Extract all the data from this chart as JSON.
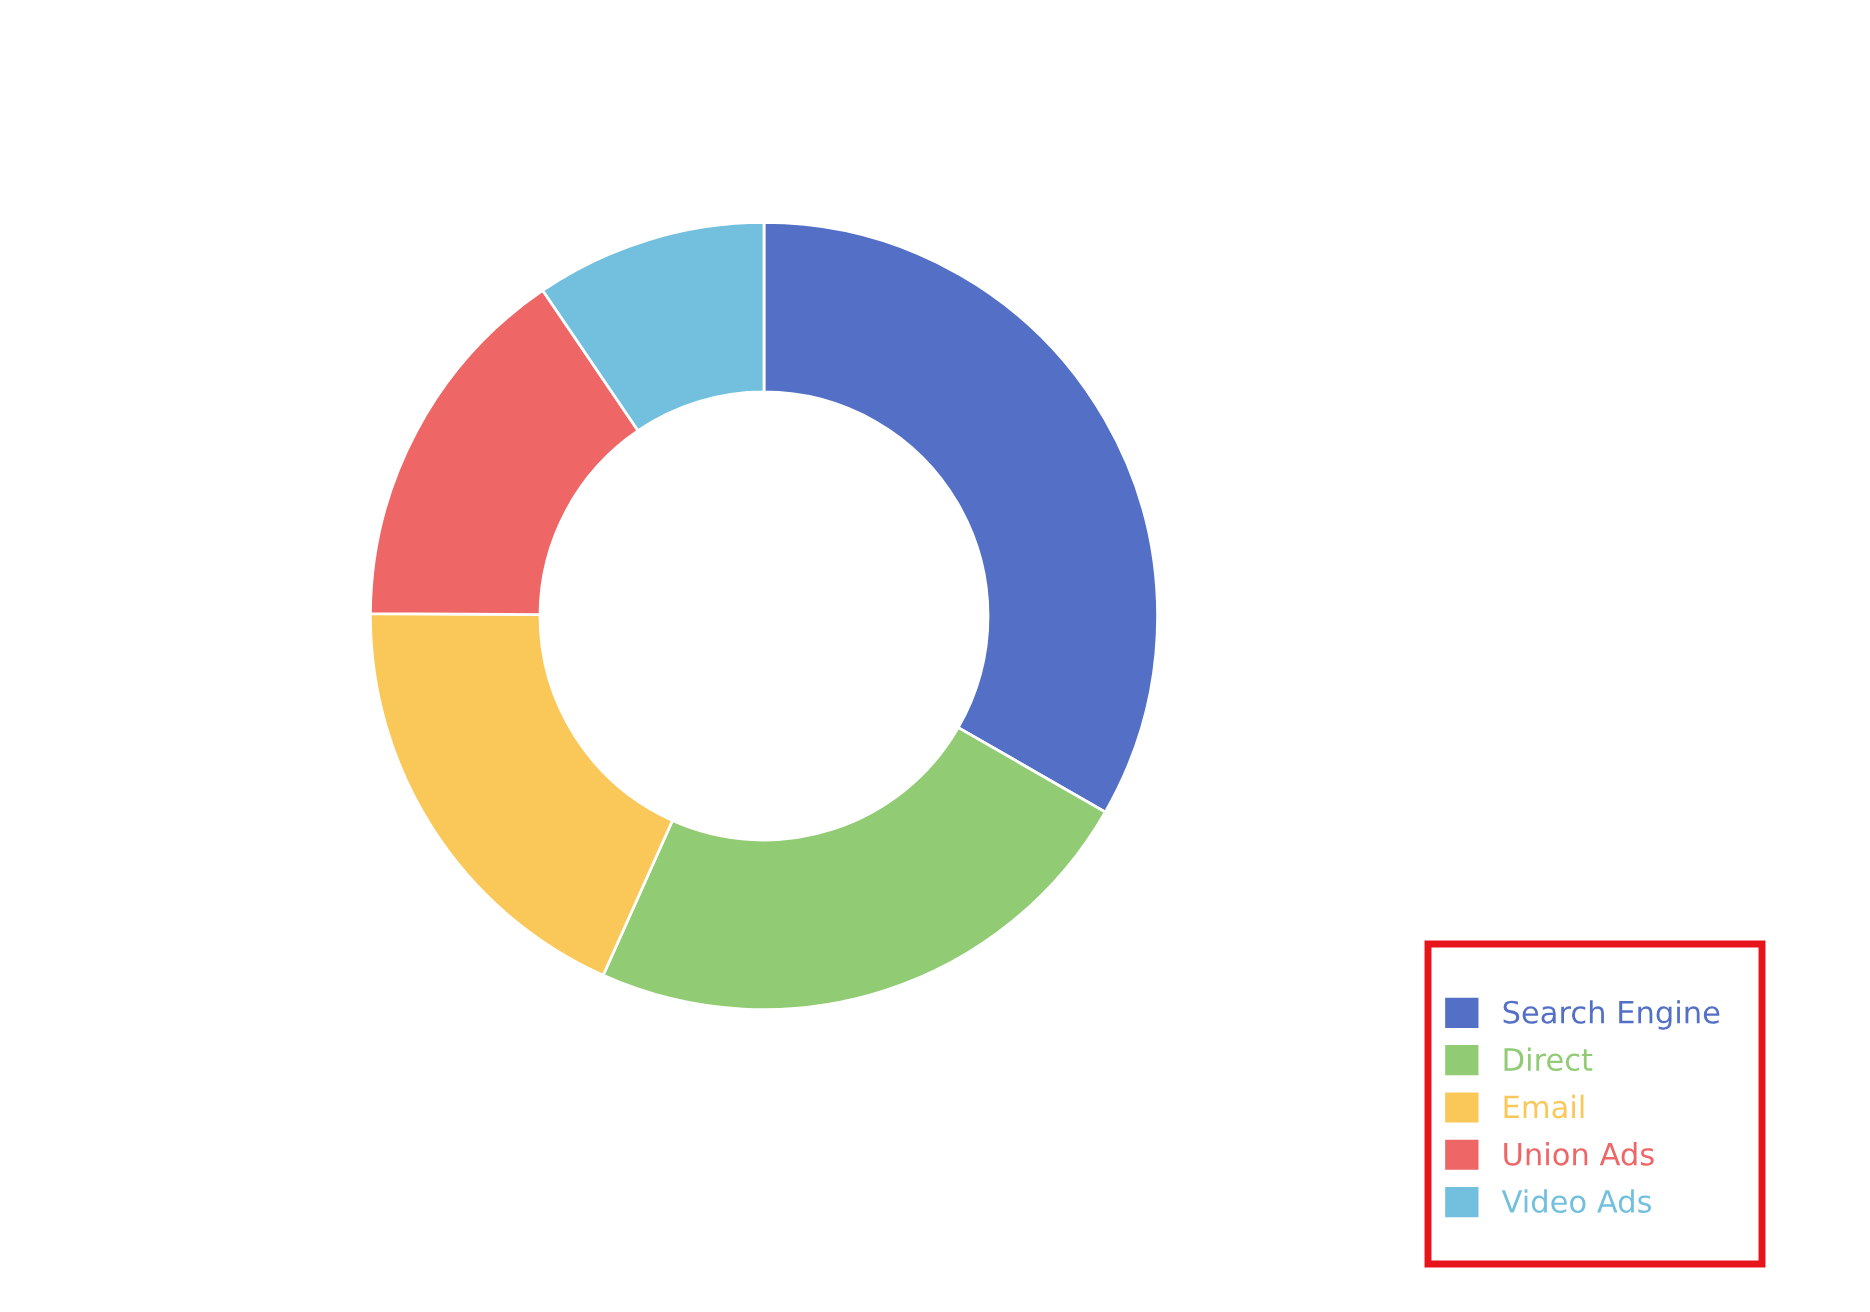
{
  "chart_data": {
    "type": "donut",
    "categories": [
      "Search Engine",
      "Direct",
      "Email",
      "Union Ads",
      "Video Ads"
    ],
    "values": [
      33.3,
      23.4,
      18.4,
      15.4,
      9.5
    ],
    "colors": [
      "#5470c6",
      "#91cc75",
      "#fac858",
      "#ee6666",
      "#73c0de"
    ],
    "legend": "bottom right"
  }
}
